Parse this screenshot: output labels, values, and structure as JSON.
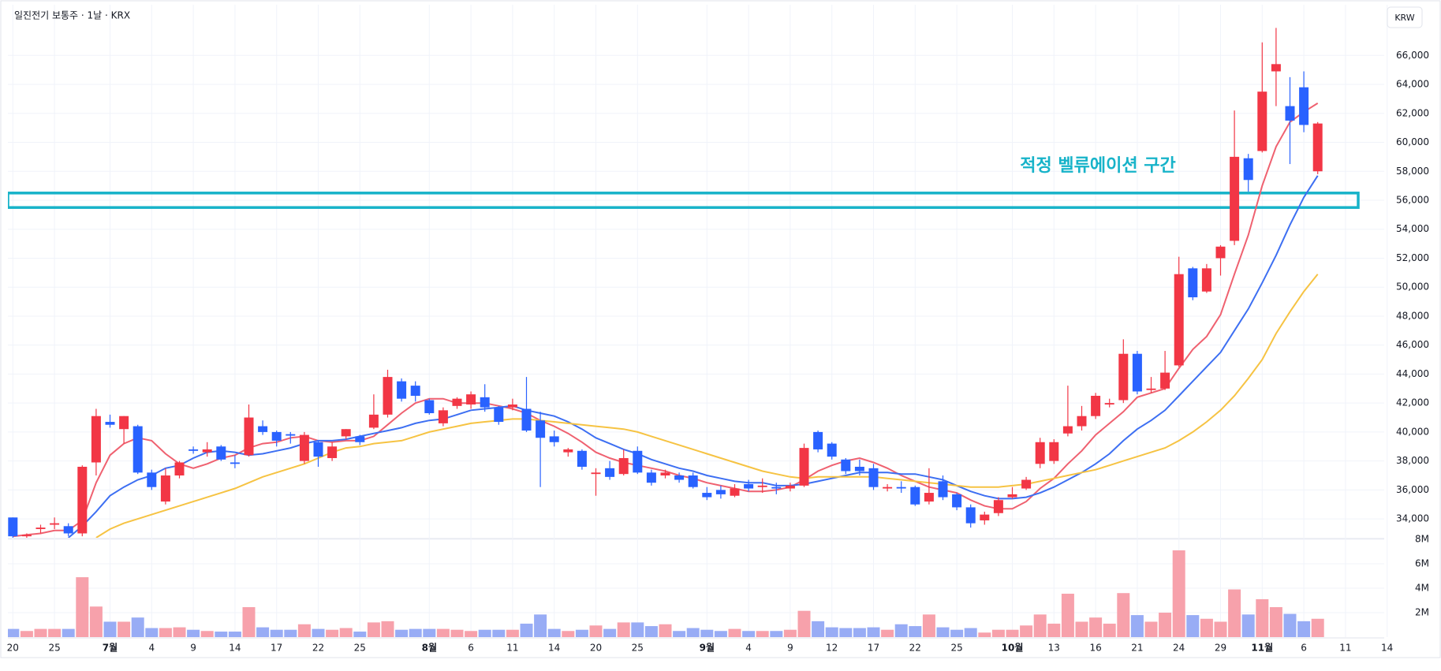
{
  "header": {
    "title": "일진전기 보통주 · 1날 · KRX",
    "currency": "KRW"
  },
  "chart_data": [
    {
      "type": "candlestick",
      "categories": [
        "20",
        null,
        null,
        "25",
        null,
        null,
        null,
        "7월",
        null,
        null,
        "4",
        null,
        null,
        "9",
        null,
        null,
        "14",
        null,
        null,
        "17",
        null,
        null,
        "22",
        null,
        null,
        "25",
        null,
        null,
        null,
        null,
        "8월",
        null,
        null,
        "6",
        null,
        null,
        "11",
        null,
        null,
        "14",
        null,
        null,
        "20",
        null,
        null,
        "25",
        null,
        null,
        null,
        null,
        "9월",
        null,
        null,
        "4",
        null,
        null,
        "9",
        null,
        null,
        "12",
        null,
        null,
        "17",
        null,
        null,
        "22",
        null,
        null,
        "25",
        null,
        null,
        null,
        "10월",
        null,
        null,
        "13",
        null,
        null,
        "16",
        null,
        null,
        "21",
        null,
        null,
        "24",
        null,
        null,
        "29",
        null,
        null,
        "11월",
        null,
        null,
        "6",
        null,
        null,
        "11",
        null,
        null,
        "14"
      ],
      "open": [
        34100,
        32800,
        33300,
        33600,
        33500,
        33000,
        37900,
        40700,
        40200,
        40400,
        37200,
        35200,
        37000,
        38800,
        38600,
        39000,
        37900,
        38400,
        40400,
        40000,
        39850,
        38000,
        39300,
        38200,
        39700,
        39700,
        40300,
        41200,
        43500,
        43200,
        42200,
        40600,
        41800,
        41900,
        42400,
        41700,
        41700,
        41600,
        40800,
        39700,
        38600,
        38700,
        37100,
        37500,
        37100,
        38700,
        37200,
        37000,
        37000,
        37000,
        35800,
        36000,
        35600,
        36400,
        36200,
        36200,
        36100,
        36300,
        40000,
        39200,
        38100,
        37600,
        37500,
        36100,
        36200,
        36200,
        35200,
        36600,
        35700,
        34800,
        33900,
        34400,
        35500,
        36100,
        37800,
        38000,
        39900,
        40400,
        41100,
        41900,
        42200,
        45400,
        42900,
        43000,
        44600,
        51300,
        49700,
        52000,
        53200,
        58900,
        59400,
        64900,
        62500,
        63800,
        58000,
        null,
        null,
        null,
        null,
        null
      ],
      "high": [
        34100,
        33000,
        33600,
        34100,
        33700,
        37700,
        41600,
        41200,
        41100,
        40500,
        37400,
        37500,
        38000,
        39000,
        39300,
        39100,
        38400,
        41900,
        40800,
        40100,
        40000,
        40000,
        39400,
        39300,
        40200,
        39800,
        42600,
        44300,
        43700,
        43500,
        42300,
        41700,
        42400,
        42800,
        43300,
        41800,
        42300,
        43800,
        41400,
        40100,
        38900,
        38800,
        37500,
        38000,
        38800,
        39000,
        37400,
        37400,
        37200,
        37200,
        36200,
        36300,
        36400,
        36700,
        36800,
        36500,
        36500,
        39200,
        40100,
        39300,
        38200,
        38100,
        37800,
        36400,
        36600,
        36300,
        37500,
        37000,
        35800,
        35000,
        34500,
        35500,
        36200,
        36900,
        39600,
        39500,
        43200,
        41800,
        42700,
        42300,
        46400,
        45600,
        43800,
        45600,
        52100,
        51400,
        51600,
        52900,
        62200,
        59200,
        66900,
        67900,
        64500,
        64900,
        61400,
        null,
        null,
        null,
        null,
        null
      ],
      "low": [
        32700,
        32700,
        33000,
        33300,
        32800,
        32800,
        37000,
        40300,
        39200,
        37100,
        36000,
        35000,
        36800,
        38500,
        38300,
        38000,
        37500,
        38300,
        39800,
        39000,
        39200,
        37800,
        37600,
        38000,
        39500,
        39100,
        40200,
        41000,
        42100,
        42100,
        41200,
        40400,
        41600,
        41600,
        41400,
        40500,
        41500,
        40000,
        36200,
        39000,
        38300,
        37400,
        35600,
        36700,
        37000,
        37100,
        36300,
        36800,
        36500,
        36100,
        35300,
        35400,
        35500,
        35900,
        35800,
        35700,
        35900,
        36200,
        38600,
        38100,
        37100,
        37000,
        36000,
        35900,
        35800,
        34900,
        35000,
        35300,
        34600,
        33400,
        33600,
        34200,
        35400,
        36000,
        37500,
        37800,
        39700,
        40100,
        40900,
        41700,
        42000,
        42600,
        42700,
        42900,
        44500,
        49100,
        49600,
        50800,
        52900,
        56600,
        59300,
        62500,
        58500,
        60700,
        57800,
        null,
        null,
        null,
        null,
        null
      ],
      "close": [
        32800,
        32900,
        33400,
        33700,
        33000,
        37600,
        41100,
        40500,
        41100,
        37200,
        36200,
        37000,
        37900,
        38700,
        38800,
        38100,
        37800,
        41000,
        40000,
        39400,
        39750,
        39800,
        38300,
        39000,
        40200,
        39300,
        41200,
        43800,
        42300,
        42500,
        41300,
        41500,
        42300,
        42600,
        41700,
        40700,
        41900,
        40100,
        39600,
        39300,
        38800,
        37600,
        37200,
        36900,
        38200,
        37200,
        36500,
        37200,
        36700,
        36200,
        35500,
        35700,
        36100,
        36100,
        36300,
        36100,
        36300,
        38900,
        38800,
        38300,
        37300,
        37300,
        36200,
        36200,
        36100,
        35000,
        35800,
        35500,
        34800,
        33700,
        34300,
        35300,
        35700,
        36700,
        39300,
        39300,
        40400,
        41100,
        42500,
        42000,
        45400,
        42800,
        43000,
        44100,
        50900,
        49300,
        51300,
        52800,
        59000,
        57400,
        63500,
        65400,
        61500,
        61200,
        61300,
        null,
        null,
        null,
        null,
        null
      ],
      "up_color": "#f23645",
      "down_color": "#2962ff",
      "lines": [
        {
          "color": "#ef6170",
          "values": [
            32800,
            32900,
            33000,
            33200,
            33200,
            33900,
            36500,
            38400,
            39200,
            39600,
            39400,
            38500,
            37800,
            37500,
            37800,
            38200,
            38400,
            38900,
            39200,
            39300,
            39600,
            39700,
            39400,
            39300,
            39400,
            39400,
            39700,
            40500,
            41300,
            42000,
            42300,
            42300,
            42000,
            42000,
            42000,
            41800,
            41600,
            41300,
            40800,
            40400,
            39900,
            39300,
            38600,
            38200,
            37900,
            37700,
            37500,
            37300,
            37000,
            36800,
            36500,
            36300,
            36100,
            35900,
            35900,
            36000,
            36200,
            36700,
            37300,
            37700,
            38000,
            38200,
            37900,
            37500,
            37000,
            36600,
            36200,
            36000,
            35800,
            35300,
            34900,
            34700,
            34700,
            35200,
            36100,
            36800,
            37800,
            38700,
            39800,
            40600,
            41400,
            42400,
            42700,
            43000,
            44400,
            45700,
            46600,
            48100,
            50900,
            53600,
            57000,
            59700,
            61400,
            62100,
            62700,
            null,
            null,
            null,
            null,
            null
          ]
        },
        {
          "color": "#3d6ff2",
          "values": [
            null,
            null,
            null,
            null,
            32700,
            33500,
            34500,
            35600,
            36200,
            36700,
            37000,
            37500,
            37700,
            38200,
            38600,
            38700,
            38600,
            38400,
            38500,
            38700,
            38900,
            39200,
            39400,
            39400,
            39500,
            39700,
            39900,
            40100,
            40300,
            40600,
            40800,
            40900,
            41200,
            41500,
            41600,
            41700,
            41800,
            41500,
            41300,
            41100,
            40700,
            40200,
            39600,
            39200,
            38800,
            38500,
            38100,
            37800,
            37500,
            37300,
            37000,
            36800,
            36600,
            36500,
            36500,
            36300,
            36300,
            36400,
            36600,
            36800,
            37000,
            37200,
            37200,
            37200,
            37100,
            37100,
            36900,
            36700,
            36300,
            35900,
            35600,
            35400,
            35400,
            35500,
            35800,
            36200,
            36700,
            37200,
            37800,
            38500,
            39400,
            40200,
            40800,
            41500,
            42500,
            43500,
            44500,
            45500,
            47000,
            48500,
            50300,
            52200,
            54300,
            56200,
            57700,
            null,
            null,
            null,
            null,
            null
          ]
        },
        {
          "color": "#f6c343",
          "values": [
            null,
            null,
            null,
            null,
            null,
            null,
            32700,
            33300,
            33700,
            34000,
            34300,
            34600,
            34900,
            35200,
            35500,
            35800,
            36100,
            36500,
            36900,
            37200,
            37500,
            37800,
            38200,
            38600,
            38900,
            39000,
            39200,
            39300,
            39400,
            39700,
            40000,
            40200,
            40400,
            40600,
            40700,
            40800,
            40900,
            40900,
            40800,
            40700,
            40600,
            40500,
            40400,
            40300,
            40200,
            40000,
            39700,
            39400,
            39100,
            38800,
            38500,
            38200,
            37900,
            37600,
            37300,
            37100,
            36900,
            36800,
            36900,
            36900,
            36900,
            36900,
            36900,
            36800,
            36700,
            36600,
            36500,
            36400,
            36300,
            36200,
            36200,
            36200,
            36300,
            36400,
            36600,
            36800,
            37000,
            37200,
            37400,
            37700,
            38000,
            38300,
            38600,
            38900,
            39400,
            40000,
            40700,
            41500,
            42500,
            43700,
            45000,
            46800,
            48300,
            49700,
            50900,
            null,
            null,
            null,
            null,
            null
          ]
        }
      ],
      "zone": {
        "label": "적정 벨류에이션 구간",
        "range": [
          55500,
          56500
        ],
        "color": "#17b3c9"
      },
      "ylim": [
        32700,
        69500
      ],
      "yticks": [
        {
          "value": 34000,
          "label": "34,000"
        },
        {
          "value": 36000,
          "label": "36,000"
        },
        {
          "value": 38000,
          "label": "38,000"
        },
        {
          "value": 40000,
          "label": "40,000"
        },
        {
          "value": 42000,
          "label": "42,000"
        },
        {
          "value": 44000,
          "label": "44,000"
        },
        {
          "value": 46000,
          "label": "46,000"
        },
        {
          "value": 48000,
          "label": "48,000"
        },
        {
          "value": 50000,
          "label": "50,000"
        },
        {
          "value": 52000,
          "label": "52,000"
        },
        {
          "value": 54000,
          "label": "54,000"
        },
        {
          "value": 56000,
          "label": "56,000"
        },
        {
          "value": 58000,
          "label": "58,000"
        },
        {
          "value": 60000,
          "label": "60,000"
        },
        {
          "value": 62000,
          "label": "62,000"
        },
        {
          "value": 64000,
          "label": "64,000"
        },
        {
          "value": 66000,
          "label": "66,000"
        }
      ],
      "grid": true
    },
    {
      "type": "bar",
      "values": [
        670000,
        500000,
        670000,
        670000,
        670000,
        4900000,
        2500000,
        1260000,
        1260000,
        1600000,
        740000,
        740000,
        800000,
        600000,
        500000,
        450000,
        450000,
        2450000,
        800000,
        600000,
        600000,
        1050000,
        670000,
        600000,
        740000,
        450000,
        1200000,
        1300000,
        600000,
        670000,
        670000,
        670000,
        600000,
        500000,
        600000,
        600000,
        600000,
        1100000,
        1850000,
        670000,
        500000,
        600000,
        950000,
        670000,
        1200000,
        1200000,
        900000,
        1050000,
        500000,
        740000,
        600000,
        500000,
        670000,
        500000,
        500000,
        500000,
        600000,
        2150000,
        1300000,
        800000,
        740000,
        740000,
        800000,
        600000,
        1050000,
        900000,
        1850000,
        800000,
        600000,
        740000,
        370000,
        600000,
        600000,
        950000,
        1850000,
        1100000,
        3550000,
        1260000,
        1600000,
        1100000,
        3600000,
        1800000,
        1260000,
        2000000,
        7100000,
        1800000,
        1500000,
        1260000,
        3900000,
        1850000,
        3100000,
        2450000,
        1900000,
        1300000,
        1500000,
        null,
        null,
        null,
        null,
        null
      ],
      "up_color": "#f7a1ab",
      "down_color": "#98acf5",
      "ylim": [
        0,
        8000000
      ],
      "yticks": [
        {
          "value": 2000000,
          "label": "2M"
        },
        {
          "value": 4000000,
          "label": "4M"
        },
        {
          "value": 6000000,
          "label": "6M"
        },
        {
          "value": 8000000,
          "label": "8M"
        }
      ],
      "grid": true
    }
  ]
}
